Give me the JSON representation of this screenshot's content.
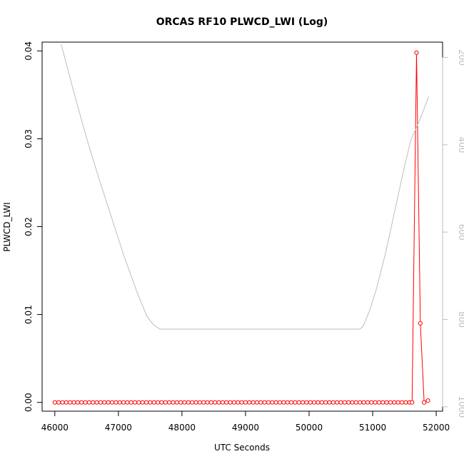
{
  "chart_data": {
    "type": "line",
    "title": "ORCAS RF10 PLWCD_LWI (Log)",
    "xlabel": "UTC Seconds",
    "ylabel": "PLWCD_LWI",
    "xlim": [
      45800,
      52100
    ],
    "ylim": [
      -0.001,
      0.041
    ],
    "x_ticks": [
      46000,
      47000,
      48000,
      49000,
      50000,
      51000,
      52000
    ],
    "y_ticks": [
      0.0,
      0.01,
      0.02,
      0.03,
      0.04
    ],
    "y_tick_labels": [
      "0.00",
      "0.01",
      "0.02",
      "0.03",
      "0.04"
    ],
    "y2_ticks": [
      200,
      400,
      600,
      800,
      1000
    ],
    "y2_lim": [
      1010,
      165
    ],
    "grid": false,
    "series": [
      {
        "role": "primary",
        "color": "#ff0000",
        "marker": "open-circle",
        "x": [
          46000,
          46060,
          46120,
          46180,
          46240,
          46300,
          46360,
          46420,
          46480,
          46540,
          46600,
          46660,
          46720,
          46780,
          46840,
          46900,
          46960,
          47020,
          47080,
          47140,
          47200,
          47260,
          47320,
          47380,
          47440,
          47500,
          47560,
          47620,
          47680,
          47740,
          47800,
          47860,
          47920,
          47980,
          48040,
          48100,
          48160,
          48220,
          48280,
          48340,
          48400,
          48460,
          48520,
          48580,
          48640,
          48700,
          48760,
          48820,
          48880,
          48940,
          49000,
          49060,
          49120,
          49180,
          49240,
          49300,
          49360,
          49420,
          49480,
          49540,
          49600,
          49660,
          49720,
          49780,
          49840,
          49900,
          49960,
          50020,
          50080,
          50140,
          50200,
          50260,
          50320,
          50380,
          50440,
          50500,
          50560,
          50620,
          50680,
          50740,
          50800,
          50860,
          50920,
          50980,
          51040,
          51100,
          51160,
          51220,
          51280,
          51340,
          51400,
          51460,
          51520,
          51580,
          51620,
          51690,
          51750,
          51810,
          51870
        ],
        "y": [
          0,
          0,
          0,
          0,
          0,
          0,
          0,
          0,
          0,
          0,
          0,
          0,
          0,
          0,
          0,
          0,
          0,
          0,
          0,
          0,
          0,
          0,
          0,
          0,
          0,
          0,
          0,
          0,
          0,
          0,
          0,
          0,
          0,
          0,
          0,
          0,
          0,
          0,
          0,
          0,
          0,
          0,
          0,
          0,
          0,
          0,
          0,
          0,
          0,
          0,
          0,
          0,
          0,
          0,
          0,
          0,
          0,
          0,
          0,
          0,
          0,
          0,
          0,
          0,
          0,
          0,
          0,
          0,
          0,
          0,
          0,
          0,
          0,
          0,
          0,
          0,
          0,
          0,
          0,
          0,
          0,
          0,
          0,
          0,
          0,
          0,
          0,
          0,
          0,
          0,
          0,
          0,
          0,
          0,
          0,
          0.0398,
          0.009,
          0,
          0.0002
        ]
      },
      {
        "role": "secondary",
        "color": "#bebebe",
        "marker": "none",
        "x": [
          46100,
          46300,
          46500,
          46700,
          46900,
          47100,
          47300,
          47450,
          47550,
          47650,
          47800,
          48000,
          48500,
          49000,
          49500,
          50000,
          50500,
          50800,
          50850,
          50950,
          51050,
          51200,
          51350,
          51500,
          51600,
          51750,
          51880
        ],
        "y": [
          170,
          280,
          385,
          480,
          570,
          660,
          740,
          793,
          812,
          822,
          822,
          822,
          822,
          822,
          822,
          822,
          822,
          822,
          815,
          780,
          735,
          650,
          550,
          450,
          390,
          340,
          290
        ]
      }
    ]
  }
}
